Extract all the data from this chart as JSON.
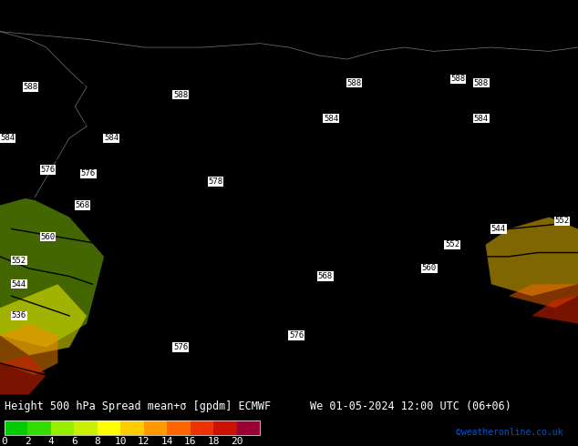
{
  "title": "Height 500 hPa Spread mean+σ [gpdm] ECMWF   We 01-05-2024 12:00 UTC (06+06)",
  "title_left": "Height 500 hPa Spread mean+σ [gpdm] ECMWF",
  "title_right": "We 01-05-2024 12:00 UTC (06+06)",
  "colorbar_label": "",
  "cbar_ticks": [
    0,
    2,
    4,
    6,
    8,
    10,
    12,
    14,
    16,
    18,
    20
  ],
  "cbar_colors": [
    "#00cc00",
    "#33dd00",
    "#99ee00",
    "#ccee00",
    "#ffff00",
    "#ffcc00",
    "#ff9900",
    "#ff6600",
    "#ee3300",
    "#cc1100",
    "#990033"
  ],
  "bg_color": "#00dd00",
  "map_color": "#00cc00",
  "contour_color": "#000000",
  "label_bg": "#ffffff",
  "font_color": "#000000",
  "watermark": "©weatheronline.co.uk",
  "watermark_color": "#0055cc",
  "fig_width": 6.34,
  "fig_height": 4.9,
  "dpi": 100,
  "title_fontsize": 8.5,
  "cbar_tick_fontsize": 8,
  "watermark_fontsize": 7
}
